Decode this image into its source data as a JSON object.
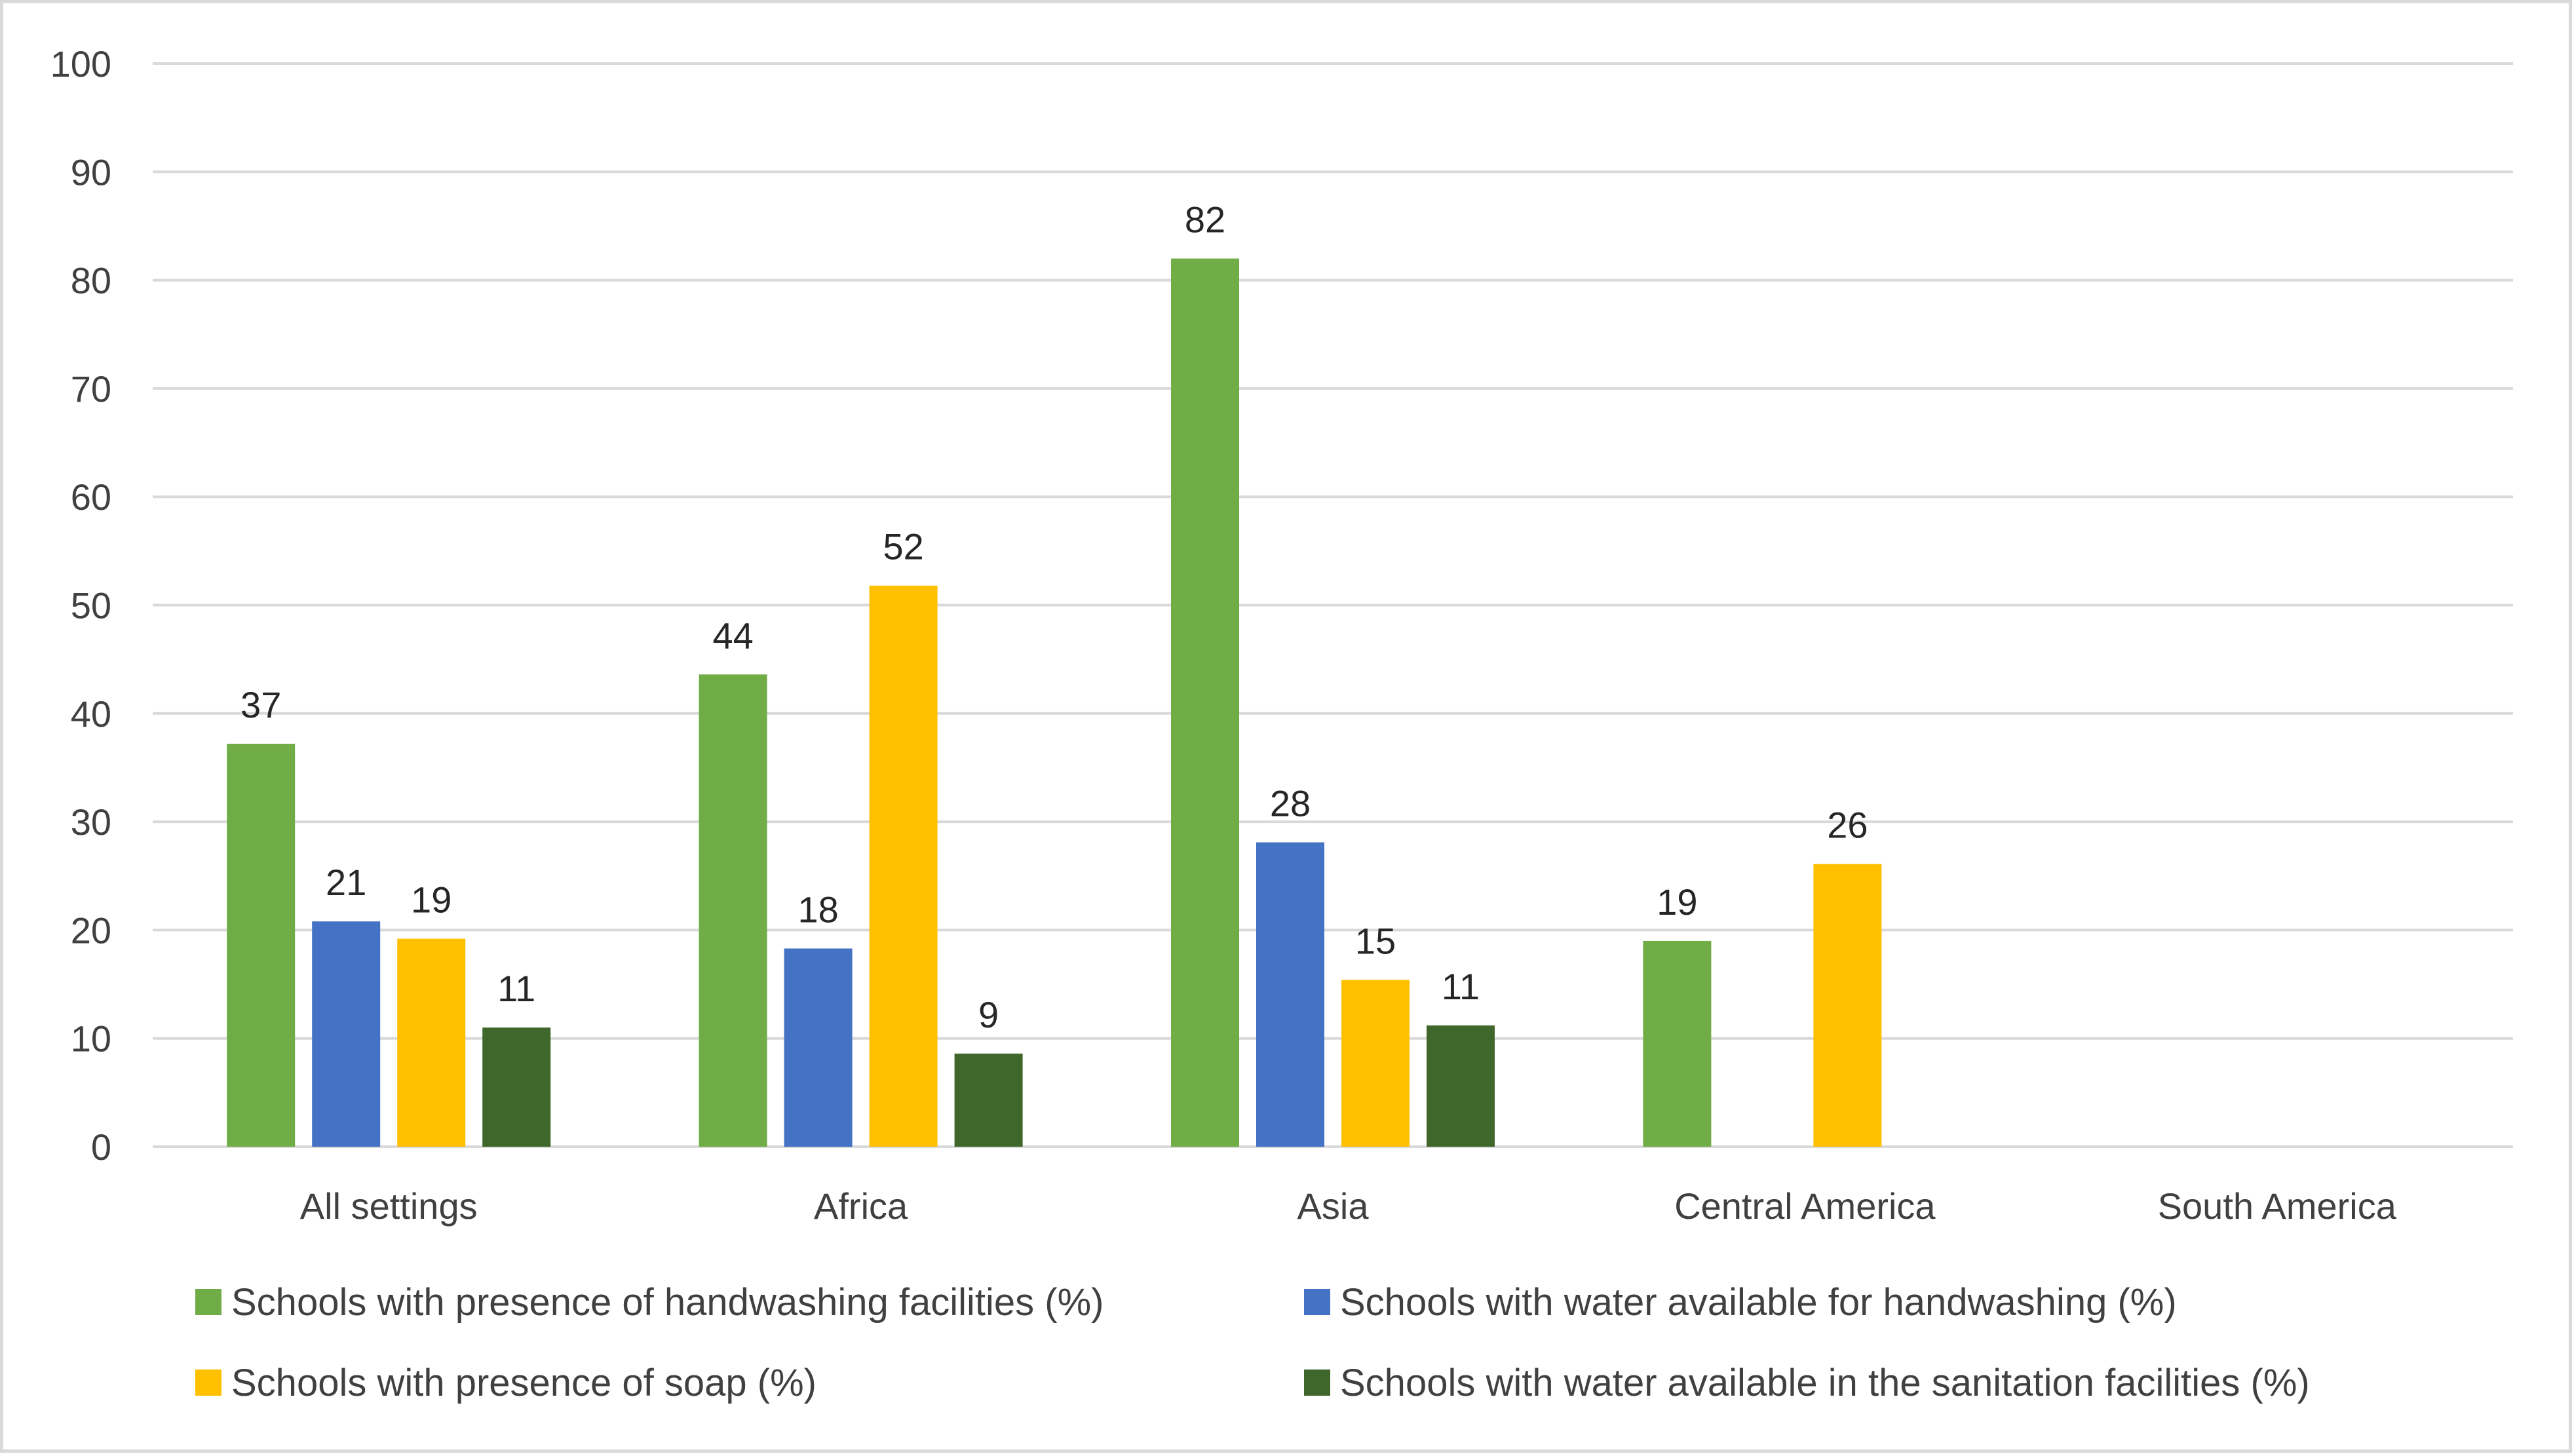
{
  "chart_data": {
    "type": "bar",
    "title": "",
    "xlabel": "",
    "ylabel": "",
    "ylim": [
      0,
      100
    ],
    "yticks": [
      0,
      10,
      20,
      30,
      40,
      50,
      60,
      70,
      80,
      90,
      100
    ],
    "grid": true,
    "legend_position": "bottom",
    "categories": [
      "All settings",
      "Africa",
      "Asia",
      "Central America",
      "South America"
    ],
    "series": [
      {
        "name": "Schools with presence of handwashing facilities (%)",
        "color": "#70ad47",
        "values": [
          37.2,
          43.6,
          82,
          19,
          null
        ],
        "labels": [
          "37",
          "44",
          "82",
          "19",
          null
        ]
      },
      {
        "name": "Schools with water available for handwashing (%)",
        "color": "#4472c4",
        "values": [
          20.8,
          18.3,
          28.1,
          null,
          null
        ],
        "labels": [
          "21",
          "18",
          "28",
          null,
          null
        ]
      },
      {
        "name": "Schools with presence of soap (%)",
        "color": "#ffc000",
        "values": [
          19.2,
          51.8,
          15.4,
          26.1,
          null
        ],
        "labels": [
          "19",
          "52",
          "15",
          "26",
          null
        ]
      },
      {
        "name": "Schools with water available in the sanitation facilities (%)",
        "color": "#3f672b",
        "values": [
          11,
          8.6,
          11.2,
          null,
          null
        ],
        "labels": [
          "11",
          "9",
          "11",
          null,
          null
        ]
      }
    ],
    "gridline_color": "#d9d9d9",
    "frame_color": "#d9d9d9"
  }
}
